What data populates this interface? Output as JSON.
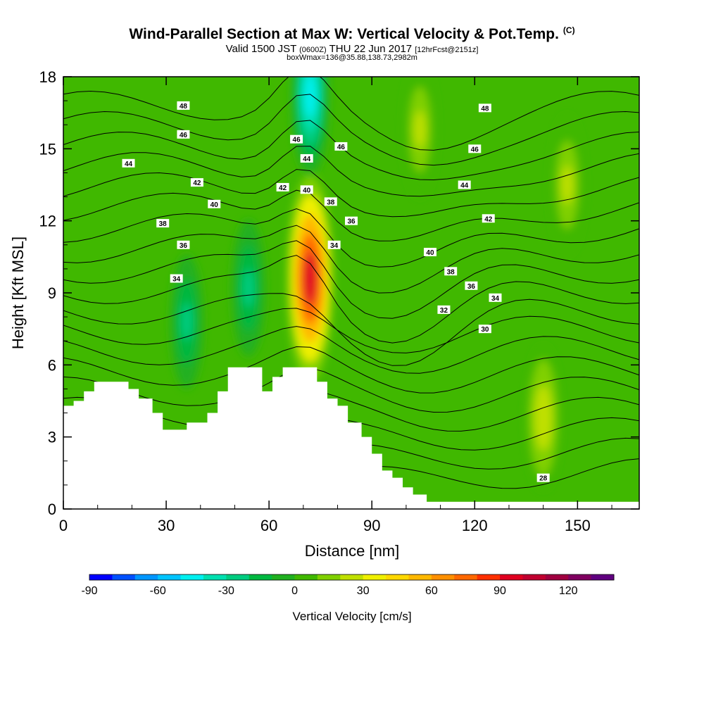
{
  "header": {
    "title": "Wind-Parallel Section at Max W: Vertical Velocity & Pot.Temp.",
    "copyright_mark": "(C)",
    "valid_prefix": "Valid 1500 JST",
    "valid_utc": "(0600Z)",
    "valid_date": "THU 22 Jun 2017",
    "forecast_info": "[12hrFcst@2151z]",
    "box_info": "boxWmax=136@35.88,138.73,2982m"
  },
  "colors": {
    "cbar": [
      "#0000ff",
      "#0050ff",
      "#0096ff",
      "#00c4ff",
      "#00f0f0",
      "#00e0b0",
      "#00cc80",
      "#00b840",
      "#20b020",
      "#40b800",
      "#80d000",
      "#c0e000",
      "#f0f000",
      "#ffd800",
      "#ffb800",
      "#ff9000",
      "#ff6800",
      "#ff3000",
      "#e00020",
      "#c00030",
      "#a00040",
      "#800060",
      "#600080"
    ],
    "background_green": "#40b800",
    "terrain": "#ffffff"
  },
  "chart_data": {
    "type": "heatmap",
    "xlabel": "Distance [nm]",
    "ylabel": "Height [Kft MSL]",
    "x_ticks": [
      0,
      30,
      60,
      90,
      120,
      150
    ],
    "y_ticks": [
      0,
      3,
      6,
      9,
      12,
      15,
      18
    ],
    "xlim": [
      0,
      168
    ],
    "ylim": [
      0,
      18
    ],
    "colorbar": {
      "title": "Vertical Velocity [cm/s]",
      "ticks": [
        -90,
        -60,
        -30,
        0,
        30,
        60,
        90,
        120
      ],
      "range": [
        -90,
        140
      ]
    },
    "terrain_profile": {
      "x": [
        0,
        3,
        3,
        6,
        6,
        9,
        9,
        13,
        13,
        19,
        19,
        22,
        22,
        26,
        26,
        29,
        29,
        36,
        36,
        42,
        42,
        45,
        45,
        48,
        48,
        58,
        58,
        61,
        61,
        64,
        64,
        74,
        74,
        77,
        77,
        80,
        80,
        83,
        83,
        87,
        87,
        90,
        90,
        93,
        93,
        96,
        96,
        99,
        99,
        102,
        102,
        106,
        106,
        168
      ],
      "y": [
        4.3,
        4.3,
        4.5,
        4.5,
        4.9,
        4.9,
        5.3,
        5.3,
        5.3,
        5.3,
        5.0,
        5.0,
        4.6,
        4.6,
        4.0,
        4.0,
        3.3,
        3.3,
        3.6,
        3.6,
        4.0,
        4.0,
        4.9,
        4.9,
        5.9,
        5.9,
        4.9,
        4.9,
        5.5,
        5.5,
        5.9,
        5.9,
        5.3,
        5.3,
        4.6,
        4.6,
        4.3,
        4.3,
        3.6,
        3.6,
        3.0,
        3.0,
        2.3,
        2.3,
        1.6,
        1.6,
        1.3,
        1.3,
        0.9,
        0.9,
        0.6,
        0.6,
        0.3,
        0.3
      ]
    },
    "w_features": [
      {
        "label": "updraft core",
        "x": 72,
        "y": 9.6,
        "value": 110
      },
      {
        "label": "updraft",
        "x": 140,
        "y": 3.8,
        "value": 35
      },
      {
        "label": "updraft band",
        "x": 147,
        "y": 13.5,
        "value": 30
      },
      {
        "label": "updraft band",
        "x": 104,
        "y": 15.8,
        "value": 25
      },
      {
        "label": "downdraft",
        "x": 72,
        "y": 17.2,
        "value": -55
      },
      {
        "label": "downdraft",
        "x": 36,
        "y": 7.8,
        "value": -25
      },
      {
        "label": "downdraft",
        "x": 54,
        "y": 9.2,
        "value": -28
      }
    ],
    "theta_labels": [
      {
        "text": "48",
        "x": 35,
        "y": 16.8
      },
      {
        "text": "46",
        "x": 35,
        "y": 15.6
      },
      {
        "text": "44",
        "x": 19,
        "y": 14.4
      },
      {
        "text": "42",
        "x": 39,
        "y": 13.6
      },
      {
        "text": "40",
        "x": 44,
        "y": 12.7
      },
      {
        "text": "38",
        "x": 29,
        "y": 11.9
      },
      {
        "text": "36",
        "x": 35,
        "y": 11.0
      },
      {
        "text": "34",
        "x": 33,
        "y": 9.6
      },
      {
        "text": "46",
        "x": 68,
        "y": 15.4
      },
      {
        "text": "46",
        "x": 81,
        "y": 15.1
      },
      {
        "text": "44",
        "x": 71,
        "y": 14.6
      },
      {
        "text": "42",
        "x": 64,
        "y": 13.4
      },
      {
        "text": "40",
        "x": 71,
        "y": 13.3
      },
      {
        "text": "38",
        "x": 78,
        "y": 12.8
      },
      {
        "text": "36",
        "x": 84,
        "y": 12.0
      },
      {
        "text": "34",
        "x": 79,
        "y": 11.0
      },
      {
        "text": "48",
        "x": 123,
        "y": 16.7
      },
      {
        "text": "46",
        "x": 120,
        "y": 15.0
      },
      {
        "text": "44",
        "x": 117,
        "y": 13.5
      },
      {
        "text": "42",
        "x": 124,
        "y": 12.1
      },
      {
        "text": "40",
        "x": 107,
        "y": 10.7
      },
      {
        "text": "38",
        "x": 113,
        "y": 9.9
      },
      {
        "text": "36",
        "x": 119,
        "y": 9.3
      },
      {
        "text": "34",
        "x": 126,
        "y": 8.8
      },
      {
        "text": "32",
        "x": 111,
        "y": 8.3
      },
      {
        "text": "30",
        "x": 123,
        "y": 7.5
      },
      {
        "text": "28",
        "x": 140,
        "y": 1.3
      }
    ]
  }
}
